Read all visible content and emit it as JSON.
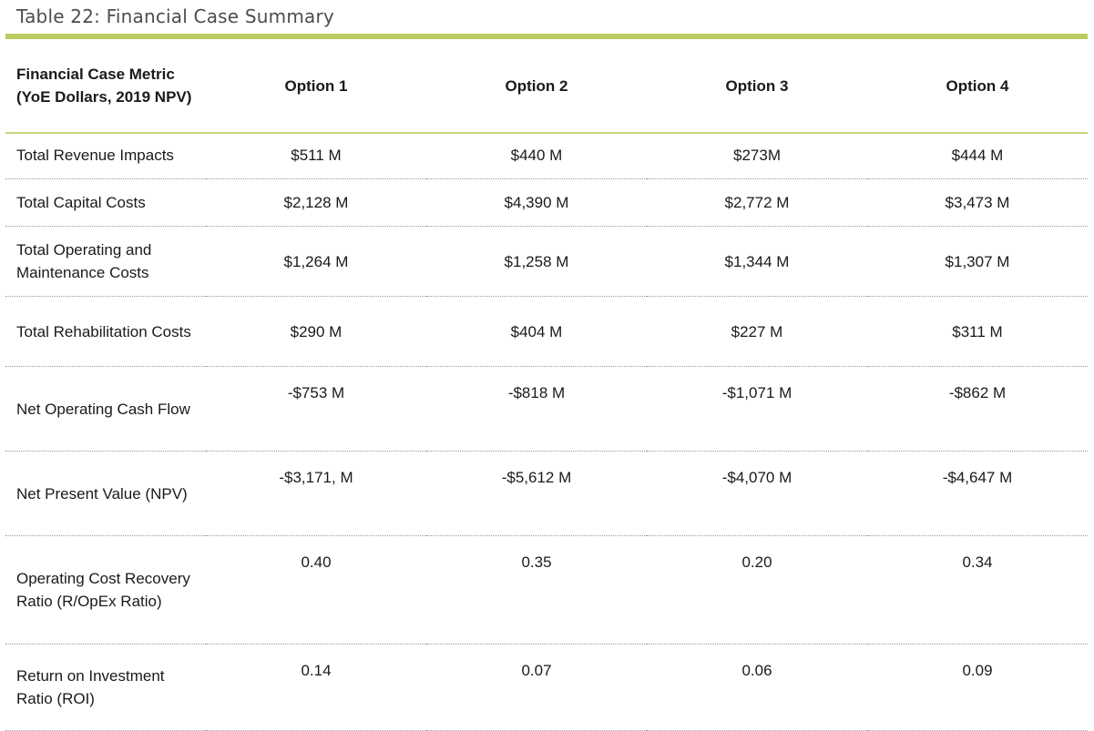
{
  "caption": "Table 22: Financial Case Summary",
  "header": {
    "metric": "Financial Case Metric (YoE Dollars, 2019 NPV)",
    "options": [
      "Option 1",
      "Option 2",
      "Option 3",
      "Option 4"
    ]
  },
  "rows": [
    {
      "label": "Total Revenue Impacts",
      "values": [
        "$511 M",
        "$440 M",
        "$273M",
        "$444 M"
      ]
    },
    {
      "label": "Total Capital Costs",
      "values": [
        "$2,128 M",
        "$4,390 M",
        "$2,772 M",
        "$3,473 M"
      ]
    },
    {
      "label": "Total Operating and Maintenance Costs",
      "values": [
        "$1,264 M",
        "$1,258 M",
        "$1,344 M",
        "$1,307 M"
      ]
    },
    {
      "label": "Total Rehabilitation Costs",
      "values": [
        "$290 M",
        "$404 M",
        "$227 M",
        "$311 M"
      ]
    },
    {
      "label": "Net Operating Cash Flow",
      "values": [
        "-$753 M",
        "-$818 M",
        "-$1,071 M",
        "-$862 M"
      ]
    },
    {
      "label": "Net Present Value (NPV)",
      "values": [
        "-$3,171, M",
        "-$5,612 M",
        "-$4,070 M",
        "-$4,647 M"
      ]
    },
    {
      "label": "Operating Cost Recovery Ratio (R/OpEx Ratio)",
      "values": [
        "0.40",
        "0.35",
        "0.20",
        "0.34"
      ]
    },
    {
      "label": "Return on Investment Ratio (ROI)",
      "values": [
        "0.14",
        "0.07",
        "0.06",
        "0.09"
      ]
    }
  ],
  "colors": {
    "accent_rule": "#b8cc63",
    "header_rule": "#c5d67f"
  }
}
